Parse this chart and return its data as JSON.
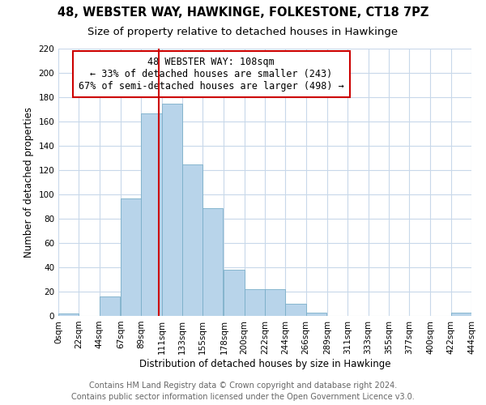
{
  "title": "48, WEBSTER WAY, HAWKINGE, FOLKESTONE, CT18 7PZ",
  "subtitle": "Size of property relative to detached houses in Hawkinge",
  "xlabel": "Distribution of detached houses by size in Hawkinge",
  "ylabel": "Number of detached properties",
  "bar_color": "#b8d4ea",
  "bar_edge_color": "#7aaec8",
  "vline_color": "#cc0000",
  "vline_x": 108,
  "annotation_line1": "48 WEBSTER WAY: 108sqm",
  "annotation_line2": "← 33% of detached houses are smaller (243)",
  "annotation_line3": "67% of semi-detached houses are larger (498) →",
  "bins_left": [
    0,
    22,
    44,
    67,
    89,
    111,
    133,
    155,
    178,
    200,
    222,
    244,
    266,
    289,
    311,
    333,
    355,
    377,
    400,
    422
  ],
  "bin_width": 22,
  "counts": [
    2,
    0,
    16,
    97,
    167,
    175,
    125,
    89,
    38,
    22,
    22,
    10,
    3,
    0,
    0,
    0,
    0,
    0,
    0,
    3
  ],
  "xtick_labels": [
    "0sqm",
    "22sqm",
    "44sqm",
    "67sqm",
    "89sqm",
    "111sqm",
    "133sqm",
    "155sqm",
    "178sqm",
    "200sqm",
    "222sqm",
    "244sqm",
    "266sqm",
    "289sqm",
    "311sqm",
    "333sqm",
    "355sqm",
    "377sqm",
    "400sqm",
    "422sqm",
    "444sqm"
  ],
  "ylim": [
    0,
    220
  ],
  "yticks": [
    0,
    20,
    40,
    60,
    80,
    100,
    120,
    140,
    160,
    180,
    200,
    220
  ],
  "footer_line1": "Contains HM Land Registry data © Crown copyright and database right 2024.",
  "footer_line2": "Contains public sector information licensed under the Open Government Licence v3.0.",
  "bg_color": "#ffffff",
  "grid_color": "#c8d8ea",
  "title_fontsize": 10.5,
  "subtitle_fontsize": 9.5,
  "axis_label_fontsize": 8.5,
  "tick_fontsize": 7.5,
  "annotation_fontsize": 8.5,
  "footer_fontsize": 7
}
